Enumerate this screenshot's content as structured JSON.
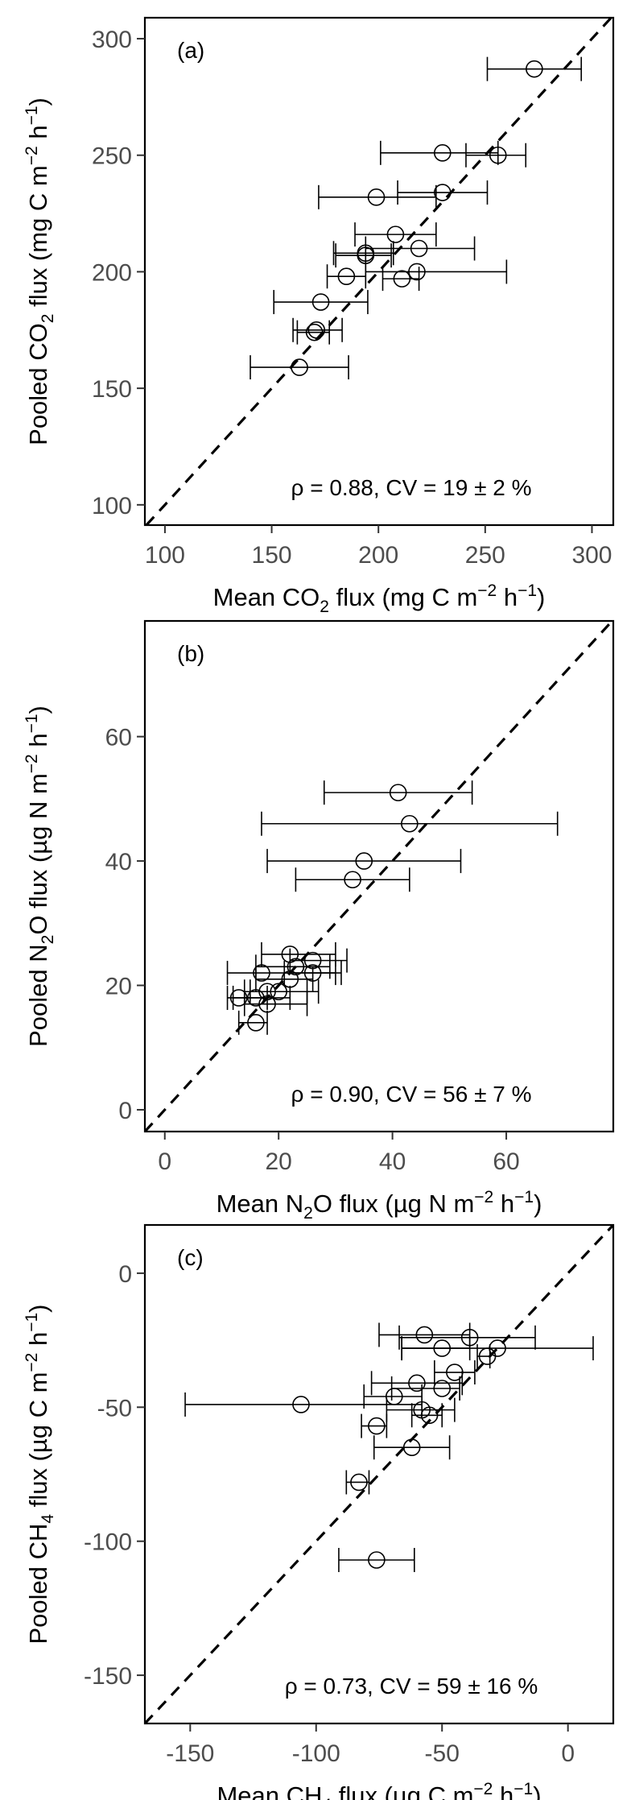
{
  "chart_data": [
    {
      "type": "scatter",
      "panel_label": "(a)",
      "xlabel": {
        "prefix": "Mean CO",
        "sub": "2",
        "suffix": " flux (mg C m",
        "sup1": "−2",
        "mid": " h",
        "sup2": "−1",
        "end": ")"
      },
      "ylabel": {
        "prefix": "Pooled CO",
        "sub": "2",
        "suffix": " flux (mg C m",
        "sup1": "−2",
        "mid": " h",
        "sup2": "−1",
        "end": ")"
      },
      "xlim": [
        90.6,
        310
      ],
      "ylim": [
        91.3,
        309
      ],
      "xticks": [
        100,
        150,
        200,
        250,
        300
      ],
      "yticks": [
        100,
        150,
        200,
        250,
        300
      ],
      "xtick_labels": [
        "100",
        "150",
        "200",
        "250",
        "300"
      ],
      "ytick_labels": [
        "100",
        "150",
        "200",
        "250",
        "300"
      ],
      "annotation": "ρ = 0.88, CV = 19 ± 2 %",
      "reference_line": "1:1 dashed",
      "points": [
        {
          "x": 273,
          "y": 287,
          "xmin": 251,
          "xmax": 295
        },
        {
          "x": 230,
          "y": 251,
          "xmin": 201,
          "xmax": 256
        },
        {
          "x": 256,
          "y": 250,
          "xmin": 241,
          "xmax": 269
        },
        {
          "x": 230,
          "y": 234,
          "xmin": 209,
          "xmax": 251
        },
        {
          "x": 199,
          "y": 232,
          "xmin": 172,
          "xmax": 227
        },
        {
          "x": 208,
          "y": 216,
          "xmin": 189,
          "xmax": 227
        },
        {
          "x": 219,
          "y": 210,
          "xmin": 194,
          "xmax": 245
        },
        {
          "x": 194,
          "y": 208,
          "xmin": 179,
          "xmax": 207
        },
        {
          "x": 194,
          "y": 207,
          "xmin": 180,
          "xmax": 206
        },
        {
          "x": 218,
          "y": 200,
          "xmin": 194,
          "xmax": 260
        },
        {
          "x": 185,
          "y": 198,
          "xmin": 176,
          "xmax": 194
        },
        {
          "x": 211,
          "y": 197,
          "xmin": 202,
          "xmax": 219
        },
        {
          "x": 173,
          "y": 187,
          "xmin": 151,
          "xmax": 195
        },
        {
          "x": 171,
          "y": 175,
          "xmin": 160,
          "xmax": 183
        },
        {
          "x": 170,
          "y": 174,
          "xmin": 162,
          "xmax": 177
        },
        {
          "x": 163,
          "y": 159,
          "xmin": 140,
          "xmax": 186
        }
      ]
    },
    {
      "type": "scatter",
      "panel_label": "(b)",
      "xlabel": {
        "prefix": "Mean N",
        "sub": "2",
        "suffix": "O flux (µg N m",
        "sup1": "−2",
        "mid": " h",
        "sup2": "−1",
        "end": ")"
      },
      "ylabel": {
        "prefix": "Pooled N",
        "sub": "2",
        "suffix": "O flux (µg N m",
        "sup1": "−2",
        "mid": " h",
        "sup2": "−1",
        "end": ")"
      },
      "xlim": [
        -3.5,
        78.8
      ],
      "ylim": [
        -3.5,
        78.6
      ],
      "xticks": [
        0,
        20,
        40,
        60
      ],
      "yticks": [
        0,
        20,
        40,
        60
      ],
      "xtick_labels": [
        "0",
        "20",
        "40",
        "60"
      ],
      "ytick_labels": [
        "0",
        "20",
        "40",
        "60"
      ],
      "annotation": "ρ = 0.90, CV = 56 ± 7 %",
      "reference_line": "1:1 dashed",
      "points": [
        {
          "x": 41,
          "y": 51,
          "xmin": 28,
          "xmax": 54
        },
        {
          "x": 43,
          "y": 46,
          "xmin": 17,
          "xmax": 69
        },
        {
          "x": 35,
          "y": 40,
          "xmin": 18,
          "xmax": 52
        },
        {
          "x": 33,
          "y": 37,
          "xmin": 23,
          "xmax": 43
        },
        {
          "x": 22,
          "y": 25,
          "xmin": 17,
          "xmax": 30
        },
        {
          "x": 26,
          "y": 24,
          "xmin": 22,
          "xmax": 32
        },
        {
          "x": 23,
          "y": 23,
          "xmin": 16,
          "xmax": 29
        },
        {
          "x": 26,
          "y": 22,
          "xmin": 21,
          "xmax": 31
        },
        {
          "x": 22,
          "y": 21,
          "xmin": 16,
          "xmax": 26
        },
        {
          "x": 17,
          "y": 22,
          "xmin": 11,
          "xmax": 30
        },
        {
          "x": 20,
          "y": 19,
          "xmin": 15,
          "xmax": 27
        },
        {
          "x": 18,
          "y": 19,
          "xmin": 14,
          "xmax": 25
        },
        {
          "x": 13,
          "y": 18,
          "xmin": 11,
          "xmax": 18
        },
        {
          "x": 16,
          "y": 18,
          "xmin": 12,
          "xmax": 22
        },
        {
          "x": 18,
          "y": 17,
          "xmin": 14,
          "xmax": 25
        },
        {
          "x": 16,
          "y": 14,
          "xmin": 13,
          "xmax": 18
        }
      ]
    },
    {
      "type": "scatter",
      "panel_label": "(c)",
      "xlabel": {
        "prefix": "Mean CH",
        "sub": "4",
        "suffix": " flux (µg C m",
        "sup1": "−2",
        "mid": " h",
        "sup2": "−1",
        "end": ")"
      },
      "ylabel": {
        "prefix": "Pooled CH",
        "sub": "4",
        "suffix": " flux (µg C m",
        "sup1": "−2",
        "mid": " h",
        "sup2": "−1",
        "end": ")"
      },
      "xlim": [
        -168,
        18
      ],
      "ylim": [
        -168,
        18
      ],
      "xticks": [
        -150,
        -100,
        -50,
        0
      ],
      "yticks": [
        -150,
        -100,
        -50,
        0
      ],
      "xtick_labels": [
        "-150",
        "-100",
        "-50",
        "0"
      ],
      "ytick_labels": [
        "-150",
        "-100",
        "-50",
        "0"
      ],
      "annotation": "ρ = 0.73, CV = 59 ± 16 %",
      "reference_line": "1:1 dashed",
      "points": [
        {
          "x": -57,
          "y": -23,
          "xmin": -75,
          "xmax": -39
        },
        {
          "x": -39,
          "y": -24,
          "xmin": -67,
          "xmax": -13
        },
        {
          "x": -50,
          "y": -28,
          "xmin": -66,
          "xmax": -39
        },
        {
          "x": -28,
          "y": -28,
          "xmin": -66,
          "xmax": 10
        },
        {
          "x": -32,
          "y": -31,
          "xmin": -36,
          "xmax": -31
        },
        {
          "x": -45,
          "y": -37,
          "xmin": -53,
          "xmax": -37
        },
        {
          "x": -60,
          "y": -41,
          "xmin": -78,
          "xmax": -42
        },
        {
          "x": -50,
          "y": -43,
          "xmin": -70,
          "xmax": -43
        },
        {
          "x": -69,
          "y": -46,
          "xmin": -81,
          "xmax": -58
        },
        {
          "x": -106,
          "y": -49,
          "xmin": -152,
          "xmax": -58
        },
        {
          "x": -58,
          "y": -51,
          "xmin": -72,
          "xmax": -45
        },
        {
          "x": -55,
          "y": -53,
          "xmin": -62,
          "xmax": -50
        },
        {
          "x": -76,
          "y": -57,
          "xmin": -82,
          "xmax": -72
        },
        {
          "x": -62,
          "y": -65,
          "xmin": -77,
          "xmax": -47
        },
        {
          "x": -83,
          "y": -78,
          "xmin": -88,
          "xmax": -79
        },
        {
          "x": -76,
          "y": -107,
          "xmin": -91,
          "xmax": -61
        }
      ]
    }
  ]
}
